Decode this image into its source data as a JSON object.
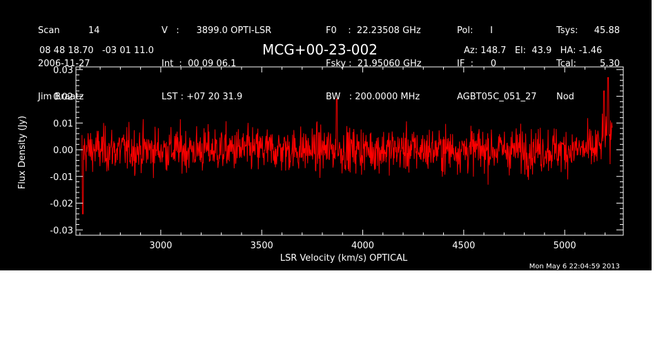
{
  "header": {
    "col1": [
      "Scan          14",
      "2006-11-27",
      "Jim Braatz"
    ],
    "col2": [
      "V   :      3899.0 OPTI-LSR",
      "Int  :  00 09 06.1",
      "LST : +07 20 31.9"
    ],
    "col3": [
      "F0    :  22.23508 GHz",
      "Fsky :  21.95060 GHz",
      "BW   : 200.0000 MHz"
    ],
    "col4": [
      "Pol:      I",
      "IF  :      0",
      "AGBT05C_051_27"
    ],
    "col5": [
      "Tsys:",
      "Tcal:",
      "Nod"
    ],
    "col6": [
      "45.88",
      "5.30",
      ""
    ],
    "coords": "08 48 18.70   -03 01 11.0",
    "source": "MCG+00-23-002",
    "azel": "Az: 148.7   El:  43.9   HA: -1.46",
    "timestamp": "Mon May  6 22:04:59 2013"
  },
  "colors": {
    "background": "#000000",
    "axes": "#ffffff",
    "data": "#ff0000"
  },
  "chart_data": {
    "type": "line",
    "title": "MCG+00-23-002",
    "xlabel": "LSR Velocity (km/s) OPTICAL",
    "ylabel": "Flux Density (Jy)",
    "xlim": [
      2580,
      5290
    ],
    "ylim": [
      -0.032,
      0.031
    ],
    "x_ticks": [
      3000,
      3500,
      4000,
      4500,
      5000
    ],
    "x_tick_labels": [
      "3000",
      "3500",
      "4000",
      "4500",
      "5000"
    ],
    "y_ticks": [
      -0.03,
      -0.02,
      -0.01,
      0.0,
      0.01,
      0.02,
      0.03
    ],
    "y_tick_labels": [
      "-0.03",
      "-0.02",
      "-0.01",
      "0.00",
      "0.01",
      "0.02",
      "0.03"
    ],
    "series": [
      {
        "x_start": 2610,
        "x_end": 5235,
        "n_points": 1300,
        "noise_rms": 0.0065,
        "features": [
          {
            "x": 2615,
            "y": -0.024
          },
          {
            "x": 3870,
            "y": 0.019
          },
          {
            "x": 5215,
            "y": 0.027
          },
          {
            "x": 5195,
            "y": 0.022
          }
        ]
      }
    ]
  }
}
